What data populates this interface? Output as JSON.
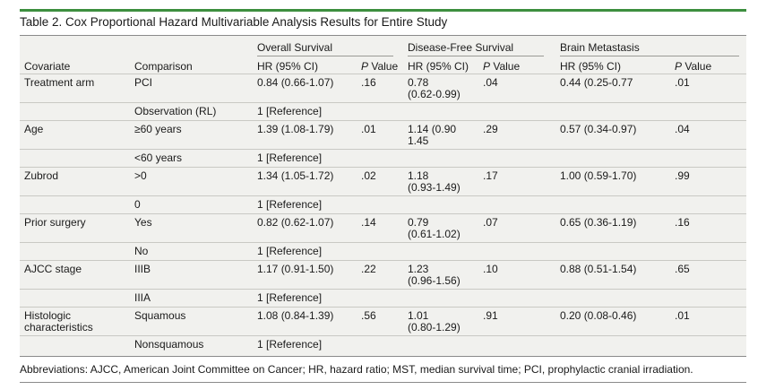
{
  "title": "Table 2. Cox Proportional Hazard Multivariable Analysis Results for Entire Study",
  "groups": {
    "os": "Overall Survival",
    "dfs": "Disease-Free Survival",
    "bm": "Brain Metastasis"
  },
  "columns": {
    "covariate": "Covariate",
    "comparison": "Comparison",
    "hr": "HR (95% CI)",
    "p_italic": "P",
    "p_rest": " Value"
  },
  "rows": [
    {
      "covariate": "Treatment arm",
      "comparison": "PCI",
      "os_hr": "0.84 (0.66-1.07)",
      "os_p": ".16",
      "dfs_hr": "0.78",
      "dfs_hr2": "(0.62-0.99)",
      "dfs_p": ".04",
      "bm_hr": "0.44 (0.25-0.77",
      "bm_p": ".01"
    },
    {
      "covariate": "",
      "comparison": "Observation (RL)",
      "os_hr": "1 [Reference]"
    },
    {
      "covariate": "Age",
      "comparison": "≥60 years",
      "os_hr": "1.39 (1.08-1.79)",
      "os_p": ".01",
      "dfs_hr": "1.14 (0.90",
      "dfs_hr2": "1.45",
      "dfs_p": ".29",
      "bm_hr": "0.57 (0.34-0.97)",
      "bm_p": ".04"
    },
    {
      "covariate": "",
      "comparison": "<60 years",
      "os_hr": "1 [Reference]"
    },
    {
      "covariate": "Zubrod",
      "comparison": ">0",
      "os_hr": "1.34 (1.05-1.72)",
      "os_p": ".02",
      "dfs_hr": "1.18",
      "dfs_hr2": "(0.93-1.49)",
      "dfs_p": ".17",
      "bm_hr": "1.00 (0.59-1.70)",
      "bm_p": ".99"
    },
    {
      "covariate": "",
      "comparison": "0",
      "os_hr": "1 [Reference]"
    },
    {
      "covariate": "Prior surgery",
      "comparison": "Yes",
      "os_hr": "0.82 (0.62-1.07)",
      "os_p": ".14",
      "dfs_hr": "0.79",
      "dfs_hr2": "(0.61-1.02)",
      "dfs_p": ".07",
      "bm_hr": "0.65 (0.36-1.19)",
      "bm_p": ".16"
    },
    {
      "covariate": "",
      "comparison": "No",
      "os_hr": "1 [Reference]"
    },
    {
      "covariate": "AJCC stage",
      "comparison": "IIIB",
      "os_hr": "1.17 (0.91-1.50)",
      "os_p": ".22",
      "dfs_hr": "1.23",
      "dfs_hr2": "(0.96-1.56)",
      "dfs_p": ".10",
      "bm_hr": "0.88 (0.51-1.54)",
      "bm_p": ".65"
    },
    {
      "covariate": "",
      "comparison": "IIIA",
      "os_hr": "1 [Reference]"
    },
    {
      "covariate": "Histologic",
      "covariate2": "characteristics",
      "comparison": "Squamous",
      "os_hr": "1.08 (0.84-1.39)",
      "os_p": ".56",
      "dfs_hr": "1.01",
      "dfs_hr2": "(0.80-1.29)",
      "dfs_p": ".91",
      "bm_hr": "0.20 (0.08-0.46)",
      "bm_p": ".01"
    },
    {
      "covariate": "",
      "comparison": "Nonsquamous",
      "os_hr": "1 [Reference]"
    }
  ],
  "footnote": "Abbreviations: AJCC, American Joint Committee on Cancer; HR, hazard ratio; MST, median survival time; PCI, prophylactic cranial irradiation.",
  "colors": {
    "accent_rule": "#3d8f3f",
    "panel_bg": "#f1f1ee"
  }
}
